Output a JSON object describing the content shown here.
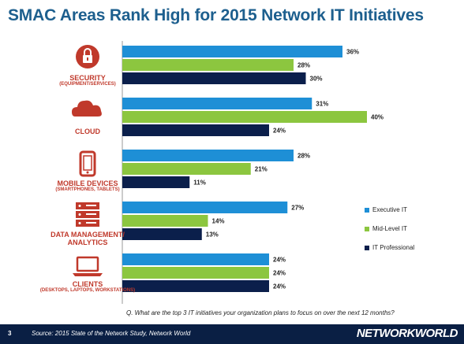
{
  "title": "SMAC Areas Rank High for 2015 Network IT Initiatives",
  "question": "Q. What are the top 3 IT initiatives your organization plans to focus on over the next 12 months?",
  "footer": {
    "page_number": "3",
    "source": "Source: 2015 State of the Network Study, Network World",
    "brand": "NETWORKWORLD"
  },
  "colors": {
    "executive": "#1e8fd6",
    "midlevel": "#8cc63f",
    "professional": "#0b1f4b",
    "icon_red": "#c0392b",
    "title": "#1d5f8e"
  },
  "chart_data": {
    "type": "bar",
    "orientation": "horizontal",
    "title": "SMAC Areas Rank High for 2015 Network IT Initiatives",
    "categories": [
      {
        "label": "SECURITY",
        "sub": "(EQUIPMENT/SERVICES)",
        "icon": "lock-icon"
      },
      {
        "label": "CLOUD",
        "sub": "",
        "icon": "cloud-icon"
      },
      {
        "label": "MOBILE DEVICES",
        "sub": "(SMARTPHONES, TABLETS)",
        "icon": "mobile-phone-icon"
      },
      {
        "label": "DATA MANAGEMENT/ ANALYTICS",
        "sub": "",
        "icon": "server-icon"
      },
      {
        "label": "CLIENTS",
        "sub": "(DESKTOPS, LAPTOPS, WORKSTATIONS)",
        "icon": "laptop-icon"
      }
    ],
    "series": [
      {
        "name": "Executive IT",
        "values": [
          36,
          31,
          28,
          27,
          24
        ]
      },
      {
        "name": "Mid-Level IT",
        "values": [
          28,
          40,
          21,
          14,
          24
        ]
      },
      {
        "name": "IT Professional",
        "values": [
          30,
          24,
          11,
          13,
          24
        ]
      }
    ],
    "unit": "%",
    "xlim": [
      0,
      40
    ],
    "legend_position": "right",
    "grid": false
  }
}
